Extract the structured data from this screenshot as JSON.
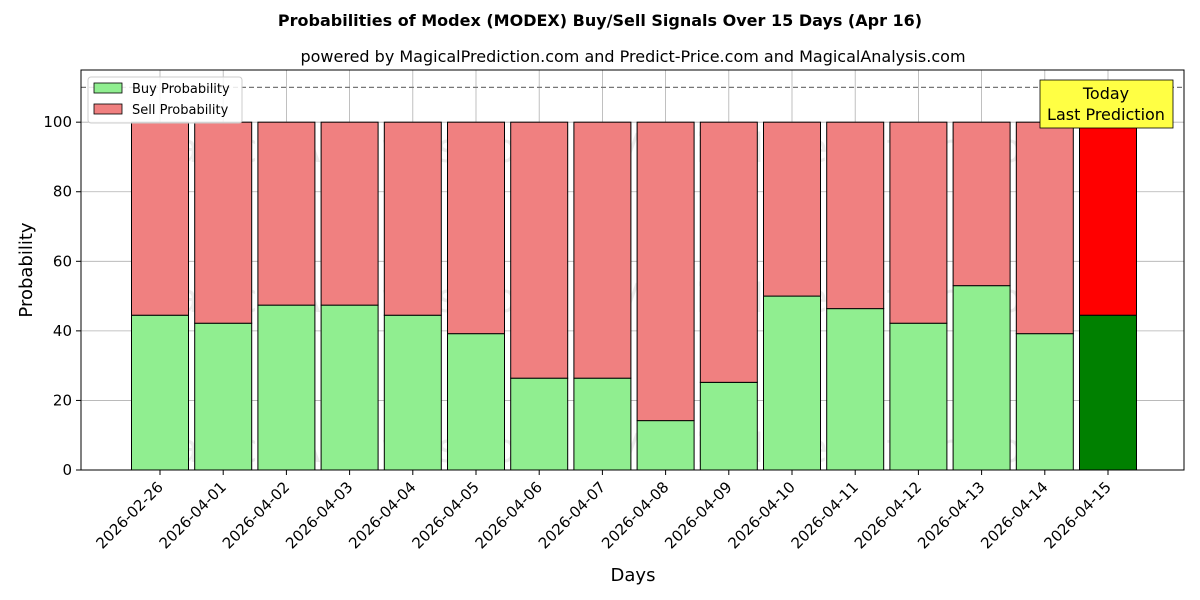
{
  "chart_data": {
    "type": "bar",
    "stacked": true,
    "title": "Probabilities of Modex (MODEX) Buy/Sell Signals Over 15 Days (Apr 16)",
    "subtitle": "powered by MagicalPrediction.com and Predict-Price.com and MagicalAnalysis.com",
    "xlabel": "Days",
    "ylabel": "Probability",
    "ylim": [
      0,
      115
    ],
    "yticks": [
      0,
      20,
      40,
      60,
      80,
      100
    ],
    "grid": true,
    "legend_position": "top-left",
    "reference_line": 110,
    "categories": [
      "2026-02-26",
      "2026-04-01",
      "2026-04-02",
      "2026-04-03",
      "2026-04-04",
      "2026-04-05",
      "2026-04-06",
      "2026-04-07",
      "2026-04-08",
      "2026-04-09",
      "2026-04-10",
      "2026-04-11",
      "2026-04-12",
      "2026-04-13",
      "2026-04-14",
      "2026-04-15"
    ],
    "series": [
      {
        "name": "Buy Probability",
        "color": "#90EE90",
        "highlight_color": "#008000",
        "values": [
          44.5,
          42.2,
          47.4,
          47.4,
          44.5,
          39.2,
          26.4,
          26.4,
          14.2,
          25.2,
          50.0,
          46.4,
          42.2,
          53.0,
          39.2,
          44.5
        ]
      },
      {
        "name": "Sell Probability",
        "color": "#F08080",
        "highlight_color": "#FF0000",
        "values": [
          55.5,
          57.8,
          52.6,
          52.6,
          55.5,
          60.8,
          73.6,
          73.6,
          85.8,
          74.8,
          50.0,
          53.6,
          57.8,
          47.0,
          60.8,
          55.5
        ]
      }
    ],
    "highlight_index": 15,
    "annotation": {
      "lines": [
        "Today",
        "Last Prediction"
      ],
      "background": "#FFFF44"
    },
    "watermarks": [
      "MagicalAnalysis.com",
      "MagicalPrediction.com"
    ]
  }
}
